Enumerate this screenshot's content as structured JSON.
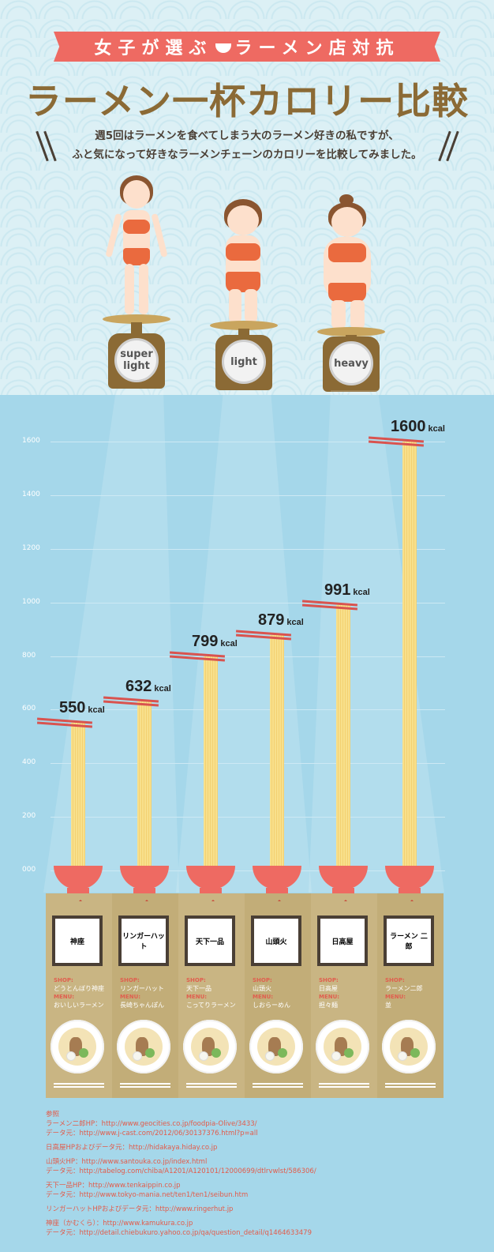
{
  "header": {
    "banner_left": "女子が選ぶ",
    "banner_right": "ラーメン店対抗",
    "title": "ラーメン一杯カロリー比較",
    "subtitle_line1": "週5回はラーメンを食べてしまう大のラーメン好きの私ですが、",
    "subtitle_line2": "ふと気になって好きなラーメンチェーンのカロリーを比較してみました。"
  },
  "scales": [
    {
      "label": "super light"
    },
    {
      "label": "light"
    },
    {
      "label": "heavy"
    }
  ],
  "chart_data": {
    "type": "bar",
    "categories": [
      "どうとんぼり神座",
      "リンガーハット",
      "天下一品",
      "山頭火",
      "日高屋",
      "ラーメン二郎"
    ],
    "values": [
      550,
      632,
      799,
      879,
      991,
      1600
    ],
    "value_labels": [
      "550",
      "632",
      "799",
      "879",
      "991",
      "1600"
    ],
    "unit": "kcal",
    "ylim": [
      0,
      1600
    ],
    "yticks": [
      "000",
      "200",
      "400",
      "600",
      "800",
      "1000",
      "1200",
      "1400",
      "1600"
    ],
    "ytick_values": [
      0,
      200,
      400,
      600,
      800,
      1000,
      1200,
      1400,
      1600
    ],
    "grid": true
  },
  "shops": [
    {
      "shop_label": "SHOP:",
      "shop": "どうとんぼり神座",
      "menu_label": "MENU:",
      "menu": "おいしいラーメン",
      "logo": "神座"
    },
    {
      "shop_label": "SHOP:",
      "shop": "リンガーハット",
      "menu_label": "MENU:",
      "menu": "長崎ちゃんぽん",
      "logo": "リンガーハット"
    },
    {
      "shop_label": "SHOP:",
      "shop": "天下一品",
      "menu_label": "MENU:",
      "menu": "こってりラーメン",
      "logo": "天下一品"
    },
    {
      "shop_label": "SHOP:",
      "shop": "山頭火",
      "menu_label": "MENU:",
      "menu": "しおらーめん",
      "logo": "山頭火"
    },
    {
      "shop_label": "SHOP:",
      "shop": "日高屋",
      "menu_label": "MENU:",
      "menu": "担々麺",
      "logo": "日高屋"
    },
    {
      "shop_label": "SHOP:",
      "shop": "ラーメン二郎",
      "menu_label": "MENU:",
      "menu": "並",
      "logo": "ラーメン 二郎"
    }
  ],
  "references": {
    "heading": "参照",
    "lines": [
      [
        "ラーメン二郎HP：http://www.geocities.co.jp/foodpia-Olive/3433/",
        "データ元：http://www.j-cast.com/2012/06/30137376.html?p=all"
      ],
      [
        "日高屋HPおよびデータ元：http://hidakaya.hiday.co.jp"
      ],
      [
        "山頭火HP：http://www.santouka.co.jp/index.html",
        "データ元：http://tabelog.com/chiba/A1201/A120101/12000699/dtlrvwlst/586306/"
      ],
      [
        "天下一品HP：http://www.tenkaippin.co.jp",
        "データ元：http://www.tokyo-mania.net/ten1/ten1/seibun.htm"
      ],
      [
        "リンガーハットHPおよびデータ元：http://www.ringerhut.jp"
      ],
      [
        "神座（かむくら）：http://www.kamukura.co.jp",
        "データ元：http://detail.chiebukuro.yahoo.co.jp/qa/question_detail/q1464633479"
      ]
    ]
  },
  "colors": {
    "accent": "#ee6a62",
    "title": "#8b6a35",
    "chart_bg": "#a5d7ea",
    "noodle": "#f8e08c"
  }
}
